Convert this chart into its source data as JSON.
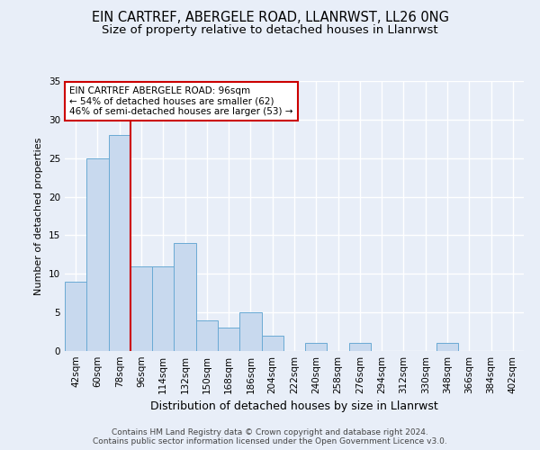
{
  "title1": "EIN CARTREF, ABERGELE ROAD, LLANRWST, LL26 0NG",
  "title2": "Size of property relative to detached houses in Llanrwst",
  "xlabel": "Distribution of detached houses by size in Llanrwst",
  "ylabel": "Number of detached properties",
  "categories": [
    "42sqm",
    "60sqm",
    "78sqm",
    "96sqm",
    "114sqm",
    "132sqm",
    "150sqm",
    "168sqm",
    "186sqm",
    "204sqm",
    "222sqm",
    "240sqm",
    "258sqm",
    "276sqm",
    "294sqm",
    "312sqm",
    "330sqm",
    "348sqm",
    "366sqm",
    "384sqm",
    "402sqm"
  ],
  "values": [
    9,
    25,
    28,
    11,
    11,
    14,
    4,
    3,
    5,
    2,
    0,
    1,
    0,
    1,
    0,
    0,
    0,
    1,
    0,
    0,
    0
  ],
  "bar_color": "#c8d9ee",
  "bar_edge_color": "#6aaad4",
  "vline_color": "#cc0000",
  "annotation_text": "EIN CARTREF ABERGELE ROAD: 96sqm\n← 54% of detached houses are smaller (62)\n46% of semi-detached houses are larger (53) →",
  "annotation_box_color": "white",
  "annotation_box_edge": "#cc0000",
  "footer": "Contains HM Land Registry data © Crown copyright and database right 2024.\nContains public sector information licensed under the Open Government Licence v3.0.",
  "ylim": [
    0,
    35
  ],
  "yticks": [
    0,
    5,
    10,
    15,
    20,
    25,
    30,
    35
  ],
  "bg_color": "#e8eef8",
  "grid_color": "white",
  "title_fontsize": 10.5,
  "subtitle_fontsize": 9.5,
  "xlabel_fontsize": 9,
  "ylabel_fontsize": 8,
  "tick_fontsize": 7.5,
  "annotation_fontsize": 7.5,
  "footer_fontsize": 6.5
}
